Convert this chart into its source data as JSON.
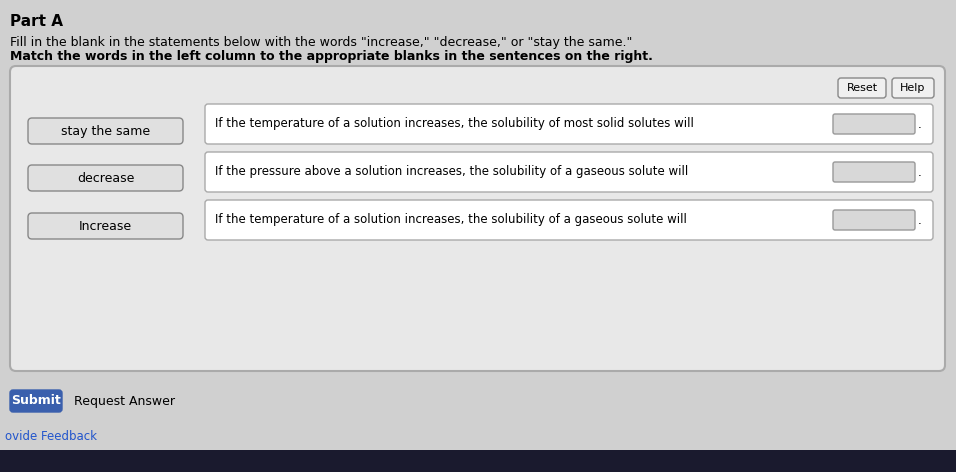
{
  "background_color": "#d0d0d0",
  "panel_bg": "#e8e8e8",
  "panel_border": "#aaaaaa",
  "part_a_text": "Part A",
  "instruction1": "Fill in the blank in the statements below with the words \"increase,\" \"decrease,\" or \"stay the same.\"",
  "instruction2": "Match the words in the left column to the appropriate blanks in the sentences on the right.",
  "left_buttons": [
    "stay the same",
    "decrease",
    "Increase"
  ],
  "button_bg": "#e0e0e0",
  "button_border": "#888888",
  "sentences": [
    "If the temperature of a solution increases, the solubility of most solid solutes will",
    "If the pressure above a solution increases, the solubility of a gaseous solute will",
    "If the temperature of a solution increases, the solubility of a gaseous solute will"
  ],
  "blank_bg": "#d8d8d8",
  "blank_border": "#999999",
  "reset_btn_text": "Reset",
  "help_btn_text": "Help",
  "submit_btn_text": "Submit",
  "submit_bg": "#3a5fad",
  "submit_text_color": "#ffffff",
  "request_answer_text": "Request Answer",
  "provide_feedback_text": "ovide Feedback",
  "sentence_row_bg": "#ffffff",
  "sentence_row_border": "#aaaaaa",
  "period_after_blank": ".",
  "font_size_part_a": 11,
  "font_size_instruction": 9,
  "font_size_buttons": 9,
  "font_size_sentences": 8.5,
  "font_size_small_btns": 8,
  "font_size_submit": 9,
  "taskbar_color": "#1a1a2e",
  "feedback_color": "#2255cc"
}
